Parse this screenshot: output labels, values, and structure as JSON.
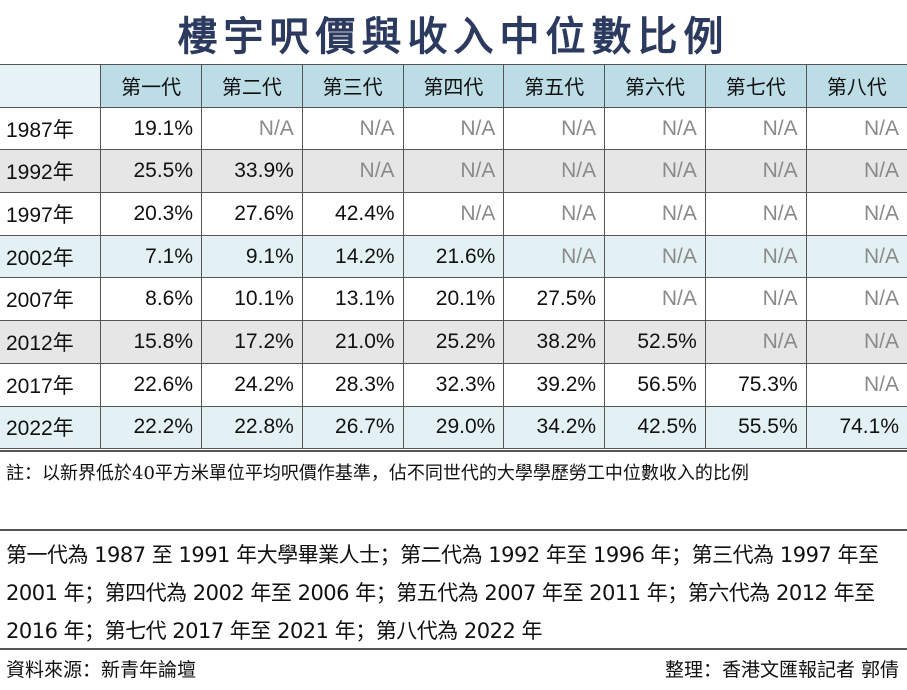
{
  "title": "樓宇呎價與收入中位數比例",
  "table": {
    "headers": [
      "第一代",
      "第二代",
      "第三代",
      "第四代",
      "第五代",
      "第六代",
      "第七代",
      "第八代"
    ],
    "rows": [
      {
        "year": "1987年",
        "values": [
          "19.1%",
          "N/A",
          "N/A",
          "N/A",
          "N/A",
          "N/A",
          "N/A",
          "N/A"
        ]
      },
      {
        "year": "1992年",
        "values": [
          "25.5%",
          "33.9%",
          "N/A",
          "N/A",
          "N/A",
          "N/A",
          "N/A",
          "N/A"
        ]
      },
      {
        "year": "1997年",
        "values": [
          "20.3%",
          "27.6%",
          "42.4%",
          "N/A",
          "N/A",
          "N/A",
          "N/A",
          "N/A"
        ]
      },
      {
        "year": "2002年",
        "values": [
          "7.1%",
          "9.1%",
          "14.2%",
          "21.6%",
          "N/A",
          "N/A",
          "N/A",
          "N/A"
        ]
      },
      {
        "year": "2007年",
        "values": [
          "8.6%",
          "10.1%",
          "13.1%",
          "20.1%",
          "27.5%",
          "N/A",
          "N/A",
          "N/A"
        ]
      },
      {
        "year": "2012年",
        "values": [
          "15.8%",
          "17.2%",
          "21.0%",
          "25.2%",
          "38.2%",
          "52.5%",
          "N/A",
          "N/A"
        ]
      },
      {
        "year": "2017年",
        "values": [
          "22.6%",
          "24.2%",
          "28.3%",
          "32.3%",
          "39.2%",
          "56.5%",
          "75.3%",
          "N/A"
        ]
      },
      {
        "year": "2022年",
        "values": [
          "22.2%",
          "22.8%",
          "26.7%",
          "29.0%",
          "34.2%",
          "42.5%",
          "55.5%",
          "74.1%"
        ]
      }
    ]
  },
  "note": "註：以新界低於40平方米單位平均呎價作基準，佔不同世代的大學學歷勞工中位數收入的比例",
  "generations": "第一代為 1987 至 1991 年大學畢業人士；第二代為 1992 年至 1996 年；第三代為 1997 年至 2001 年；第四代為 2002 年至 2006 年；第五代為 2007 年至 2011 年；第六代為 2012 年至 2016 年；第七代 2017 年至 2021 年；第八代為 2022 年",
  "source": "資料來源：新青年論壇",
  "credit": "整理：香港文匯報記者 郭倩",
  "colors": {
    "title": "#2b3a5e",
    "header": "#bcdde6",
    "row_gray": "#e6e6e6",
    "row_blue": "#e4f1f4"
  }
}
